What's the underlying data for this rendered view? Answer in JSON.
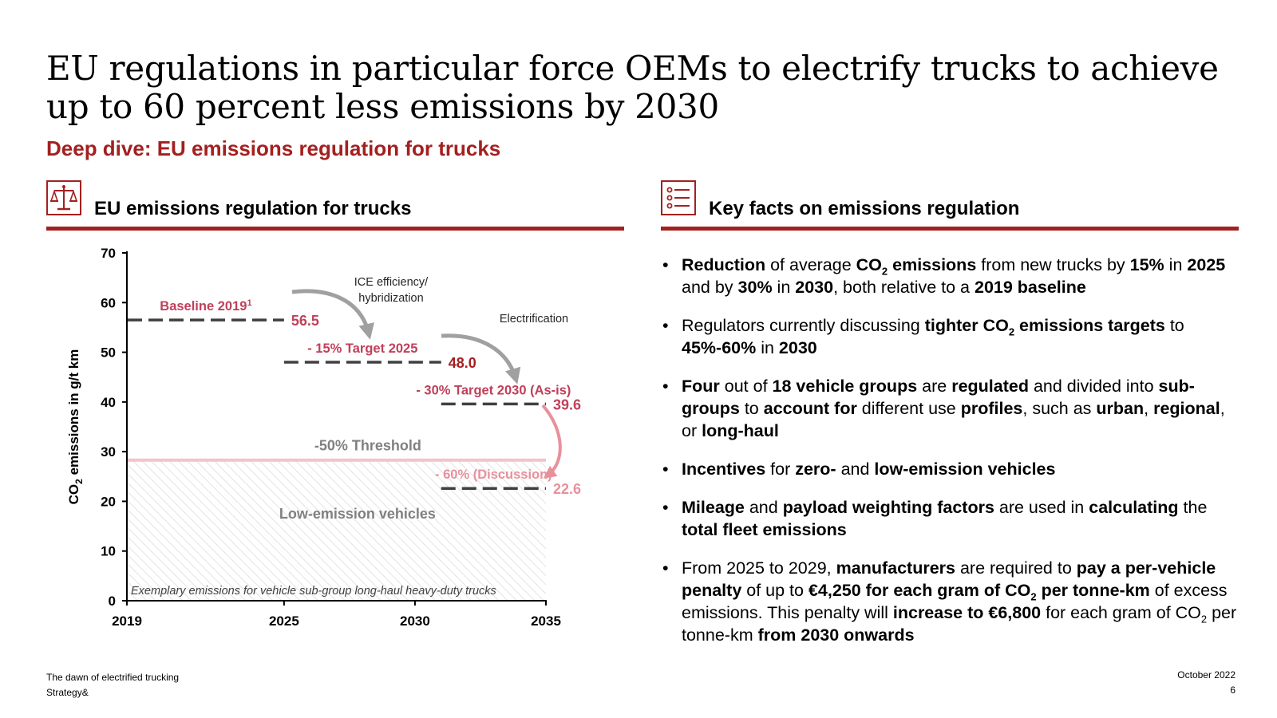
{
  "header": {
    "title": "EU regulations in particular force OEMs to electrify trucks to achieve up to 60 percent less emissions by 2030",
    "subtitle": "Deep dive: EU emissions regulation for trucks"
  },
  "left_panel": {
    "heading": "EU emissions regulation for trucks",
    "icon": "scales-icon"
  },
  "right_panel": {
    "heading": "Key facts on emissions regulation",
    "icon": "checklist-icon"
  },
  "chart_data": {
    "type": "line",
    "ylabel_main": "CO",
    "ylabel_sub": "2",
    "ylabel_rest": " emissions in g/t km",
    "ylim": [
      0,
      70
    ],
    "yticks": [
      "0",
      "10",
      "20",
      "30",
      "40",
      "50",
      "60",
      "70"
    ],
    "xlim": [
      2019,
      2035
    ],
    "xticks": [
      "2019",
      "2025",
      "2030",
      "2035"
    ],
    "grid": false,
    "levels": [
      {
        "label": "Baseline 2019",
        "superscript": "1",
        "value_label": "56.5",
        "value": 56.5,
        "x_start": 2019,
        "x_end": 2025,
        "color": "#404040",
        "label_color": "#c0405a",
        "value_color": "#c0405a"
      },
      {
        "label": "- 15% Target 2025",
        "superscript": "",
        "value_label": "48.0",
        "value": 48.0,
        "x_start": 2025,
        "x_end": 2031,
        "color": "#404040",
        "label_color": "#c0405a",
        "value_color": "#a32020"
      },
      {
        "label": "- 30% Target 2030 (As-is)",
        "superscript": "",
        "value_label": "39.6",
        "value": 39.6,
        "x_start": 2031,
        "x_end": 2035,
        "color": "#404040",
        "label_color": "#c0405a",
        "value_color": "#c0405a"
      },
      {
        "label": "- 60% (Discussion)",
        "superscript": "",
        "value_label": "22.6",
        "value": 22.6,
        "x_start": 2031,
        "x_end": 2035,
        "color": "#404040",
        "label_color": "#e8909c",
        "value_color": "#e8909c"
      }
    ],
    "threshold": {
      "label": "-50% Threshold",
      "value": 28.3
    },
    "region_label": "Low-emission vehicles",
    "footnote": "Exemplary emissions for vehicle sub-group long-haul heavy-duty trucks",
    "annotations": [
      {
        "line1": "ICE efficiency/",
        "line2": "hybridization"
      },
      {
        "line1": "Electrification",
        "line2": ""
      }
    ],
    "colors": {
      "accent": "#a32020",
      "threshold_line": "#f2c4cb",
      "region_hatch": "#e3e3e3",
      "arrow_grey": "#a0a0a0",
      "arrow_pink": "#e8909c"
    }
  },
  "facts": [
    {
      "segments": [
        [
          "b",
          "Reduction"
        ],
        [
          "t",
          " of average "
        ],
        [
          "b",
          "CO"
        ],
        [
          "bs",
          "2"
        ],
        [
          "b",
          " emissions"
        ],
        [
          "t",
          " from new trucks by "
        ],
        [
          "b",
          "15%"
        ],
        [
          "t",
          " in "
        ],
        [
          "b",
          "2025"
        ],
        [
          "t",
          " and by "
        ],
        [
          "b",
          "30%"
        ],
        [
          "t",
          " in "
        ],
        [
          "b",
          "2030"
        ],
        [
          "t",
          ", both relative to a "
        ],
        [
          "b",
          "2019 baseline"
        ]
      ]
    },
    {
      "segments": [
        [
          "t",
          "Regulators currently discussing "
        ],
        [
          "b",
          "tighter CO"
        ],
        [
          "bs",
          "2"
        ],
        [
          "b",
          " emissions targets"
        ],
        [
          "t",
          " to "
        ],
        [
          "b",
          "45%-60%"
        ],
        [
          "t",
          " in "
        ],
        [
          "b",
          "2030"
        ]
      ]
    },
    {
      "segments": [
        [
          "b",
          "Four"
        ],
        [
          "t",
          " out of "
        ],
        [
          "b",
          "18 vehicle groups"
        ],
        [
          "t",
          " are "
        ],
        [
          "b",
          "regulated"
        ],
        [
          "t",
          " and divided into "
        ],
        [
          "b",
          "sub-groups"
        ],
        [
          "t",
          " to "
        ],
        [
          "b",
          "account for"
        ],
        [
          "t",
          " different use "
        ],
        [
          "b",
          "profiles"
        ],
        [
          "t",
          ", such as "
        ],
        [
          "b",
          "urban"
        ],
        [
          "t",
          ", "
        ],
        [
          "b",
          "regional"
        ],
        [
          "t",
          ", or "
        ],
        [
          "b",
          "long-haul"
        ]
      ]
    },
    {
      "segments": [
        [
          "b",
          "Incentives"
        ],
        [
          "t",
          " for "
        ],
        [
          "b",
          "zero-"
        ],
        [
          "t",
          " and "
        ],
        [
          "b",
          "low-emission vehicles"
        ]
      ]
    },
    {
      "segments": [
        [
          "b",
          "Mileage"
        ],
        [
          "t",
          " and "
        ],
        [
          "b",
          "payload weighting factors"
        ],
        [
          "t",
          " are used in "
        ],
        [
          "b",
          "calculating"
        ],
        [
          "t",
          " the "
        ],
        [
          "b",
          "total fleet emissions"
        ]
      ]
    },
    {
      "segments": [
        [
          "t",
          "From 2025 to 2029, "
        ],
        [
          "b",
          "manufacturers"
        ],
        [
          "t",
          " are required to "
        ],
        [
          "b",
          "pay a per-vehicle penalty"
        ],
        [
          "t",
          " of up to "
        ],
        [
          "b",
          "€4,250 for each gram of CO"
        ],
        [
          "bs",
          "2"
        ],
        [
          "b",
          " per tonne-km"
        ],
        [
          "t",
          " of excess emissions. This penalty will "
        ],
        [
          "b",
          "increase to €6,800"
        ],
        [
          "t",
          " for each gram of CO"
        ],
        [
          "ts",
          "2"
        ],
        [
          "t",
          " per tonne-km "
        ],
        [
          "b",
          "from 2030 onwards"
        ]
      ]
    }
  ],
  "footer": {
    "report": "The dawn of electrified trucking",
    "brand": "Strategy&",
    "date": "October 2022",
    "page": "6"
  }
}
